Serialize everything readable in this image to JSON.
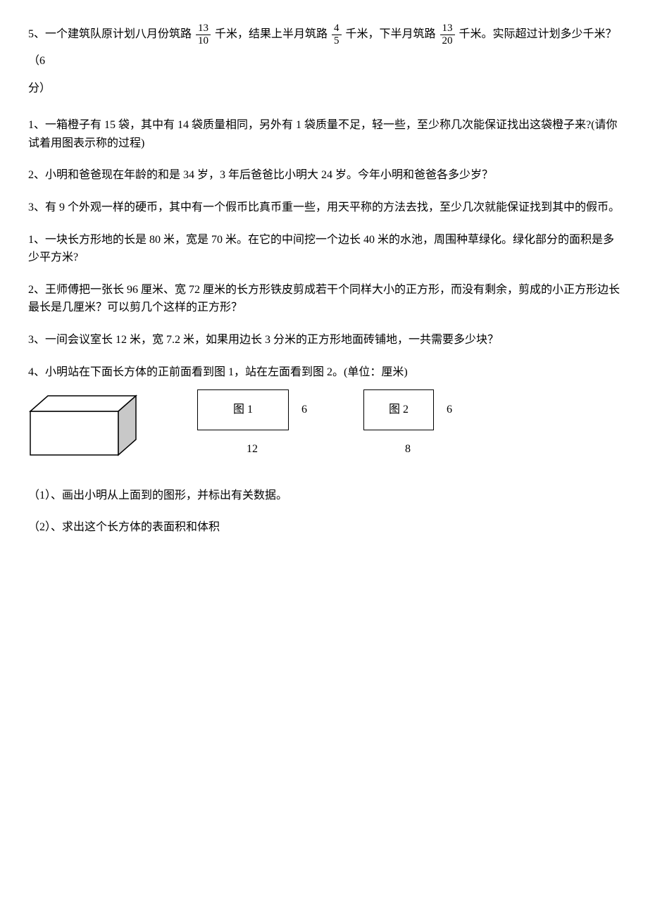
{
  "q5": {
    "t1": "5、一个建筑队原计划八月份筑路 ",
    "f1n": "13",
    "f1d": "10",
    "t2": "千米，结果上半月筑路 ",
    "f2n": "4",
    "f2d": "5",
    "t3": "千米，下半月筑路 ",
    "f3n": "13",
    "f3d": "20",
    "t4": "千米。实际超过计划多少千米？（6",
    "t5": "分）"
  },
  "s1q1": "1、一箱橙子有 15 袋，其中有 14 袋质量相同，另外有 1 袋质量不足，轻一些，至少称几次能保证找出这袋橙子来?(请你试着用图表示称的过程)",
  "s1q2": "2、小明和爸爸现在年龄的和是 34 岁，3 年后爸爸比小明大 24 岁。今年小明和爸爸各多少岁？",
  "s1q3": "3、有 9 个外观一样的硬币，其中有一个假币比真币重一些，用天平称的方法去找，至少几次就能保证找到其中的假币。",
  "s2q1": "1、一块长方形地的长是 80 米，宽是 70 米。在它的中间挖一个边长 40 米的水池，周围种草绿化。绿化部分的面积是多少平方米?",
  "s2q2": "2、王师傅把一张长 96 厘米、宽 72 厘米的长方形铁皮剪成若干个同样大小的正方形，而没有剩余，剪成的小正方形边长最长是几厘米？可以剪几个这样的正方形？",
  "s2q3": "3、一间会议室长 12 米，宽 7.2 米，如果用边长 3 分米的正方形地面砖铺地，一共需要多少块？",
  "s2q4": "4、小明站在下面长方体的正前面看到图 1，站在左面看到图 2。(单位：厘米)",
  "diag": {
    "r1_label": "图 1",
    "r1_side": "6",
    "r1_bottom": "12",
    "r1_w": 130,
    "r1_h": 58,
    "r2_label": "图 2",
    "r2_side": "6",
    "r2_bottom": "8",
    "r2_w": 100,
    "r2_h": 58,
    "cuboid": {
      "stroke": "#000000",
      "fill_side": "#c8c8c8"
    }
  },
  "sub1": "（1）、画出小明从上面到的图形，并标出有关数据。",
  "sub2": "（2）、求出这个长方体的表面积和体积"
}
